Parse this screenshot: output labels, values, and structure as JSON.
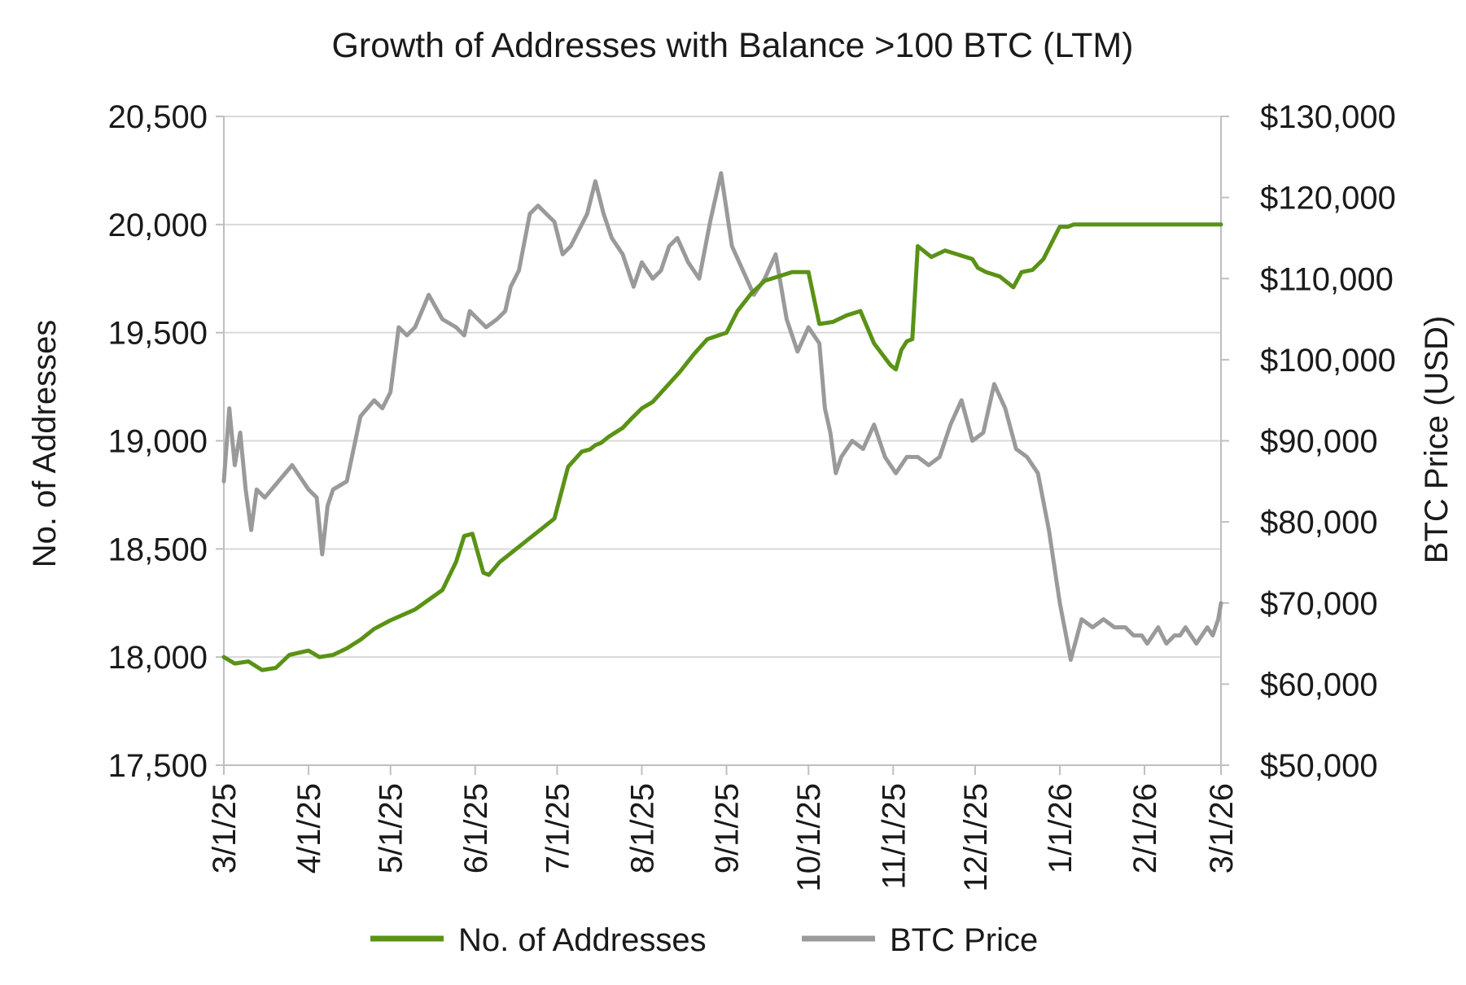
{
  "chart_data": {
    "type": "line",
    "title": "Growth of Addresses with Balance >100 BTC (LTM)",
    "xlabel": "",
    "ylabel_left": "No. of Addresses",
    "ylabel_right": "BTC Price (USD)",
    "x_tick_labels": [
      "3/1/25",
      "4/1/25",
      "5/1/25",
      "6/1/25",
      "7/1/25",
      "8/1/25",
      "9/1/25",
      "10/1/25",
      "11/1/25",
      "12/1/25",
      "1/1/26",
      "2/1/26",
      "3/1/26"
    ],
    "y_left_tick_labels": [
      "17,500",
      "18,000",
      "18,500",
      "19,000",
      "19,500",
      "20,000",
      "20,500"
    ],
    "y_right_tick_labels": [
      "$50,000",
      "$60,000",
      "$70,000",
      "$80,000",
      "$90,000",
      "$100,000",
      "$110,000",
      "$120,000",
      "$130,000"
    ],
    "ylim_left": [
      17500,
      20500
    ],
    "ylim_right": [
      50000,
      130000
    ],
    "xlim_days": [
      0,
      365
    ],
    "grid": true,
    "legend_position": "bottom",
    "series": [
      {
        "name": "No. of Addresses",
        "axis": "left",
        "color": "#5a9216",
        "x": [
          "3/1/25",
          "3/5/25",
          "3/10/25",
          "3/15/25",
          "3/20/25",
          "3/25/25",
          "4/1/25",
          "4/5/25",
          "4/10/25",
          "4/15/25",
          "4/20/25",
          "4/25/25",
          "5/1/25",
          "5/10/25",
          "5/20/25",
          "5/25/25",
          "5/28/25",
          "5/31/25",
          "6/2/25",
          "6/4/25",
          "6/6/25",
          "6/8/25",
          "6/10/25",
          "6/15/25",
          "6/20/25",
          "6/25/25",
          "6/30/25",
          "7/5/25",
          "7/10/25",
          "7/13/25",
          "7/15/25",
          "7/17/25",
          "7/20/25",
          "7/25/25",
          "7/28/25",
          "8/1/25",
          "8/5/25",
          "8/10/25",
          "8/15/25",
          "8/20/25",
          "8/25/25",
          "9/1/25",
          "9/5/25",
          "9/10/25",
          "9/15/25",
          "9/20/25",
          "9/25/25",
          "10/1/25",
          "10/5/25",
          "10/10/25",
          "10/15/25",
          "10/20/25",
          "10/25/25",
          "10/31/25",
          "11/2/25",
          "11/4/25",
          "11/6/25",
          "11/8/25",
          "11/10/25",
          "11/15/25",
          "11/20/25",
          "11/25/25",
          "11/30/25",
          "12/2/25",
          "12/5/25",
          "12/10/25",
          "12/15/25",
          "12/18/25",
          "12/22/25",
          "12/26/25",
          "1/1/26",
          "1/4/26",
          "1/6/26",
          "1/10/26",
          "1/14/26",
          "1/18/26",
          "1/22/26",
          "1/26/26",
          "2/1/26",
          "2/5/26",
          "2/10/26",
          "2/15/26",
          "2/20/26",
          "2/24/26",
          "2/26/26",
          "2/28/26",
          "3/1/26"
        ],
        "y": [
          18000,
          17970,
          17980,
          17940,
          17950,
          18010,
          18030,
          18000,
          18010,
          18040,
          18080,
          18130,
          18170,
          18220,
          18310,
          18440,
          18560,
          18570,
          18480,
          18390,
          18380,
          18410,
          18440,
          18490,
          18540,
          18590,
          18640,
          18880,
          18950,
          18960,
          18980,
          18990,
          19020,
          19060,
          19100,
          19150,
          19180,
          19250,
          19320,
          19400,
          19470,
          19500,
          19600,
          19680,
          19740,
          19760,
          19780,
          19780,
          19540,
          19550,
          19580,
          19600,
          19450,
          19350,
          19330,
          19420,
          19460,
          19470,
          19900,
          19850,
          19880,
          19860,
          19840,
          19800,
          19780,
          19760,
          19710,
          19780,
          19790,
          19840,
          19990,
          19990,
          20000,
          20000,
          20000,
          20000,
          20000,
          20000,
          20000,
          20000,
          20000,
          20000,
          20000,
          20000,
          20000,
          20000,
          20000
        ],
        "x_days": [
          0,
          4,
          9,
          14,
          19,
          24,
          31,
          35,
          40,
          45,
          50,
          55,
          61,
          70,
          80,
          85,
          88,
          91,
          93,
          95,
          97,
          99,
          101,
          106,
          111,
          116,
          121,
          126,
          131,
          134,
          136,
          138,
          141,
          146,
          149,
          153,
          157,
          162,
          167,
          172,
          177,
          184,
          188,
          193,
          198,
          203,
          208,
          214,
          218,
          223,
          228,
          233,
          238,
          244,
          246,
          248,
          250,
          252,
          254,
          259,
          264,
          269,
          274,
          276,
          279,
          284,
          289,
          292,
          296,
          300,
          306,
          309,
          311,
          315,
          319,
          323,
          327,
          331,
          337,
          341,
          346,
          351,
          356,
          360,
          362,
          364,
          365
        ]
      },
      {
        "name": "BTC Price",
        "axis": "right",
        "color": "#9a9a9a",
        "x_days": [
          0,
          2,
          4,
          6,
          8,
          10,
          12,
          15,
          20,
          25,
          31,
          34,
          36,
          38,
          40,
          45,
          50,
          55,
          58,
          61,
          64,
          67,
          70,
          75,
          80,
          85,
          88,
          90,
          93,
          96,
          100,
          103,
          105,
          108,
          112,
          115,
          118,
          121,
          124,
          127,
          130,
          133,
          136,
          139,
          142,
          146,
          150,
          153,
          157,
          160,
          163,
          166,
          170,
          174,
          178,
          182,
          186,
          190,
          194,
          198,
          202,
          206,
          210,
          214,
          218,
          220,
          222,
          224,
          226,
          230,
          234,
          238,
          242,
          246,
          250,
          254,
          258,
          262,
          266,
          270,
          274,
          278,
          282,
          286,
          290,
          294,
          298,
          302,
          306,
          310,
          314,
          318,
          322,
          326,
          330,
          333,
          336,
          338,
          340,
          342,
          345,
          348,
          350,
          352,
          356,
          360,
          362,
          364,
          365
        ],
        "y": [
          85000,
          94000,
          87000,
          91000,
          84000,
          79000,
          84000,
          83000,
          85000,
          87000,
          84000,
          83000,
          76000,
          82000,
          84000,
          85000,
          93000,
          95000,
          94000,
          96000,
          104000,
          103000,
          104000,
          108000,
          105000,
          104000,
          103000,
          106000,
          105000,
          104000,
          105000,
          106000,
          109000,
          111000,
          118000,
          119000,
          118000,
          117000,
          113000,
          114000,
          116000,
          118000,
          122000,
          118000,
          115000,
          113000,
          109000,
          112000,
          110000,
          111000,
          114000,
          115000,
          112000,
          110000,
          117000,
          123000,
          114000,
          111000,
          108000,
          110000,
          113000,
          105000,
          101000,
          104000,
          102000,
          94000,
          91000,
          86000,
          88000,
          90000,
          89000,
          92000,
          88000,
          86000,
          88000,
          88000,
          87000,
          88000,
          92000,
          95000,
          90000,
          91000,
          97000,
          94000,
          89000,
          88000,
          86000,
          79000,
          70000,
          63000,
          68000,
          67000,
          68000,
          67000,
          67000,
          66000,
          66000,
          65000,
          66000,
          67000,
          65000,
          66000,
          66000,
          67000,
          65000,
          67000,
          66000,
          68000,
          70000
        ]
      }
    ]
  },
  "legend": {
    "items": [
      {
        "label": "No. of Addresses",
        "color": "#5a9216"
      },
      {
        "label": "BTC Price",
        "color": "#9a9a9a"
      }
    ]
  },
  "colors": {
    "grid": "#d9d9d9",
    "axis": "#bfbfbf",
    "addresses": "#5a9216",
    "btc": "#9a9a9a"
  }
}
